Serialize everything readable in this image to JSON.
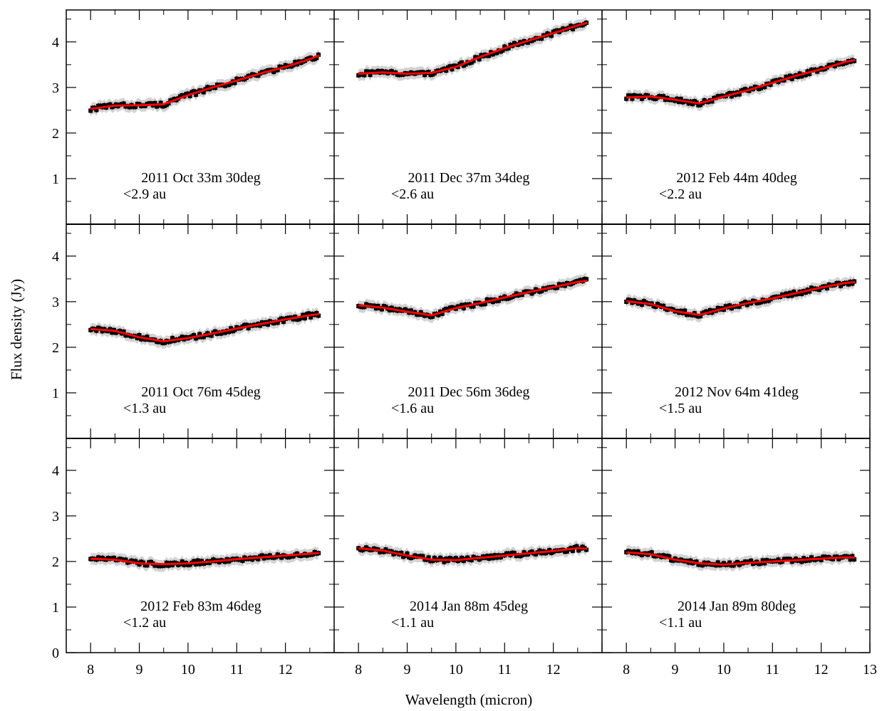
{
  "chart_data": {
    "type": "scatter",
    "layout": "3x3 grid of panels with shared axes",
    "xlabel": "Wavelength (micron)",
    "ylabel": "Flux density (Jy)",
    "xlim": [
      7.5,
      13
    ],
    "ylim": [
      0,
      4.7
    ],
    "xticks": [
      8,
      9,
      10,
      11,
      12,
      13
    ],
    "yticks": [
      0,
      1,
      2,
      3,
      4
    ],
    "colors": {
      "data": "#000000",
      "errorband": "#d3d3d3",
      "model": "#ff0000"
    },
    "panels": [
      {
        "line1": "2011 Oct 33m 30deg",
        "line2": "<2.9 au",
        "knots": [
          [
            8.0,
            2.53
          ],
          [
            8.5,
            2.6
          ],
          [
            9.0,
            2.61
          ],
          [
            9.5,
            2.63
          ],
          [
            10.0,
            2.83
          ],
          [
            10.5,
            3.0
          ],
          [
            11.0,
            3.15
          ],
          [
            11.5,
            3.31
          ],
          [
            12.0,
            3.45
          ],
          [
            12.5,
            3.62
          ],
          [
            12.7,
            3.7
          ]
        ]
      },
      {
        "line1": "2011 Dec 37m 34deg",
        "line2": "<2.6 au",
        "knots": [
          [
            8.0,
            3.3
          ],
          [
            8.5,
            3.33
          ],
          [
            9.0,
            3.3
          ],
          [
            9.5,
            3.32
          ],
          [
            10.0,
            3.45
          ],
          [
            10.5,
            3.67
          ],
          [
            11.0,
            3.86
          ],
          [
            11.5,
            4.03
          ],
          [
            12.0,
            4.19
          ],
          [
            12.5,
            4.36
          ],
          [
            12.7,
            4.42
          ]
        ]
      },
      {
        "line1": "2012 Feb 44m 40deg",
        "line2": "<2.2 au",
        "knots": [
          [
            8.0,
            2.78
          ],
          [
            8.5,
            2.8
          ],
          [
            9.0,
            2.73
          ],
          [
            9.5,
            2.65
          ],
          [
            10.0,
            2.8
          ],
          [
            10.5,
            2.94
          ],
          [
            11.0,
            3.1
          ],
          [
            11.5,
            3.26
          ],
          [
            12.0,
            3.4
          ],
          [
            12.5,
            3.56
          ],
          [
            12.7,
            3.6
          ]
        ]
      },
      {
        "line1": "2011 Oct 76m 45deg",
        "line2": "<1.3 au",
        "knots": [
          [
            8.0,
            2.4
          ],
          [
            8.5,
            2.36
          ],
          [
            9.0,
            2.22
          ],
          [
            9.5,
            2.13
          ],
          [
            10.0,
            2.2
          ],
          [
            10.5,
            2.3
          ],
          [
            11.0,
            2.41
          ],
          [
            11.5,
            2.51
          ],
          [
            12.0,
            2.61
          ],
          [
            12.5,
            2.7
          ],
          [
            12.7,
            2.73
          ]
        ]
      },
      {
        "line1": "2011 Dec 56m 36deg",
        "line2": "<1.6 au",
        "knots": [
          [
            8.0,
            2.92
          ],
          [
            8.5,
            2.87
          ],
          [
            9.0,
            2.78
          ],
          [
            9.5,
            2.7
          ],
          [
            10.0,
            2.86
          ],
          [
            10.5,
            2.97
          ],
          [
            11.0,
            3.09
          ],
          [
            11.5,
            3.21
          ],
          [
            12.0,
            3.32
          ],
          [
            12.5,
            3.43
          ],
          [
            12.7,
            3.46
          ]
        ]
      },
      {
        "line1": "2012 Nov 64m 41deg",
        "line2": "<1.5 au",
        "knots": [
          [
            8.0,
            3.01
          ],
          [
            8.5,
            2.95
          ],
          [
            9.0,
            2.79
          ],
          [
            9.5,
            2.71
          ],
          [
            10.0,
            2.85
          ],
          [
            10.5,
            2.97
          ],
          [
            11.0,
            3.07
          ],
          [
            11.5,
            3.19
          ],
          [
            12.0,
            3.31
          ],
          [
            12.5,
            3.41
          ],
          [
            12.7,
            3.43
          ]
        ]
      },
      {
        "line1": "2012 Feb 83m 46deg",
        "line2": "<1.2 au",
        "knots": [
          [
            8.0,
            2.06
          ],
          [
            8.5,
            2.04
          ],
          [
            9.0,
            1.96
          ],
          [
            9.5,
            1.94
          ],
          [
            10.0,
            1.96
          ],
          [
            10.5,
            2.0
          ],
          [
            11.0,
            2.05
          ],
          [
            11.5,
            2.09
          ],
          [
            12.0,
            2.13
          ],
          [
            12.5,
            2.17
          ],
          [
            12.7,
            2.19
          ]
        ]
      },
      {
        "line1": "2014 Jan 88m 45deg",
        "line2": "<1.1 au",
        "knots": [
          [
            8.0,
            2.29
          ],
          [
            8.5,
            2.24
          ],
          [
            9.0,
            2.13
          ],
          [
            9.5,
            2.04
          ],
          [
            10.0,
            2.03
          ],
          [
            10.5,
            2.08
          ],
          [
            11.0,
            2.13
          ],
          [
            11.5,
            2.18
          ],
          [
            12.0,
            2.23
          ],
          [
            12.5,
            2.29
          ],
          [
            12.7,
            2.28
          ]
        ]
      },
      {
        "line1": "2014 Jan 89m 80deg",
        "line2": "<1.1 au",
        "knots": [
          [
            8.0,
            2.2
          ],
          [
            8.5,
            2.16
          ],
          [
            9.0,
            2.04
          ],
          [
            9.5,
            1.96
          ],
          [
            10.0,
            1.93
          ],
          [
            10.5,
            1.97
          ],
          [
            11.0,
            2.0
          ],
          [
            11.5,
            2.03
          ],
          [
            12.0,
            2.06
          ],
          [
            12.5,
            2.09
          ],
          [
            12.7,
            2.09
          ]
        ]
      }
    ]
  }
}
